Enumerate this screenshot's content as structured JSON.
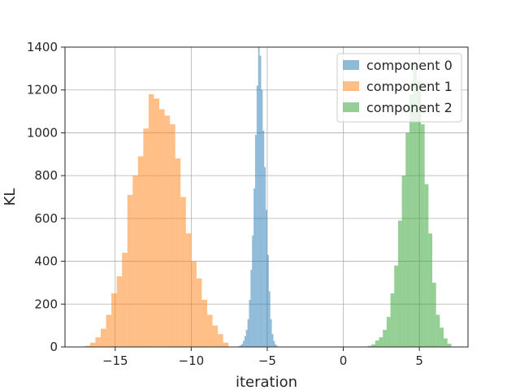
{
  "chart_data": {
    "type": "bar",
    "subtype": "histogram",
    "title": "",
    "xlabel": "iteration",
    "ylabel": "KL",
    "xlim": [
      -18.3,
      8.2
    ],
    "ylim": [
      0,
      1400
    ],
    "xticks": [
      -15,
      -10,
      -5,
      0,
      5
    ],
    "xtick_labels": [
      "−15",
      "−10",
      "−5",
      "0",
      "5"
    ],
    "yticks": [
      0,
      200,
      400,
      600,
      800,
      1000,
      1200,
      1400
    ],
    "ytick_labels": [
      "0",
      "200",
      "400",
      "600",
      "800",
      "1000",
      "1200",
      "1400"
    ],
    "grid": true,
    "legend_position": "top-right",
    "series": [
      {
        "name": "component 0",
        "color": "#1f77b4",
        "alpha": 0.5,
        "bin_start": -7.0,
        "bin_width": 0.1,
        "counts": [
          2,
          4,
          8,
          14,
          28,
          50,
          80,
          130,
          220,
          360,
          520,
          740,
          990,
          1220,
          1400,
          1360,
          1200,
          1010,
          840,
          640,
          430,
          260,
          130,
          60,
          28,
          12,
          5,
          2
        ]
      },
      {
        "name": "component 1",
        "color": "#ff7f0e",
        "alpha": 0.5,
        "bin_start": -17.0,
        "bin_width": 0.35,
        "counts": [
          5,
          20,
          45,
          85,
          150,
          250,
          330,
          440,
          710,
          800,
          890,
          1020,
          1180,
          1160,
          1110,
          1080,
          1040,
          880,
          700,
          530,
          400,
          320,
          220,
          150,
          100,
          60,
          20
        ]
      },
      {
        "name": "component 2",
        "color": "#2ca02c",
        "alpha": 0.5,
        "bin_start": 1.6,
        "bin_width": 0.25,
        "counts": [
          5,
          12,
          30,
          45,
          80,
          140,
          250,
          380,
          590,
          800,
          1000,
          1180,
          1330,
          1240,
          1040,
          760,
          530,
          300,
          150,
          90,
          40,
          15
        ]
      }
    ]
  }
}
